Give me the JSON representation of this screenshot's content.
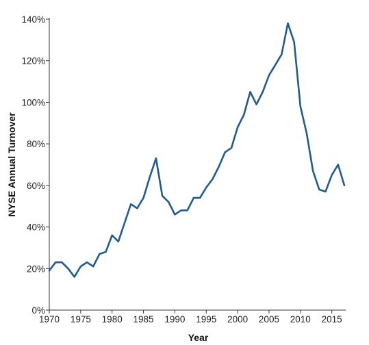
{
  "chart_data": {
    "type": "line",
    "title": "",
    "xlabel": "Year",
    "ylabel": "NYSE Annual Turnover",
    "xlim": [
      1970,
      2017
    ],
    "ylim": [
      0,
      140
    ],
    "x_ticks": [
      1970,
      1975,
      1980,
      1985,
      1990,
      1995,
      2000,
      2005,
      2010,
      2015
    ],
    "y_ticks": [
      0,
      20,
      40,
      60,
      80,
      100,
      120,
      140
    ],
    "y_tick_labels": [
      "0%",
      "20%",
      "40%",
      "60%",
      "80%",
      "100%",
      "120%",
      "140%"
    ],
    "grid": false,
    "legend": "none",
    "line_color": "#1f5a9a",
    "series": [
      {
        "x": [
          1970,
          1971,
          1972,
          1973,
          1974,
          1975,
          1976,
          1977,
          1978,
          1979,
          1980,
          1981,
          1982,
          1983,
          1984,
          1985,
          1986,
          1987,
          1988,
          1989,
          1990,
          1991,
          1992,
          1993,
          1994,
          1995,
          1996,
          1997,
          1998,
          1999,
          2000,
          2001,
          2002,
          2003,
          2004,
          2005,
          2006,
          2007,
          2008,
          2009,
          2010,
          2011,
          2012,
          2013,
          2014,
          2015,
          2016,
          2017
        ],
        "values": [
          19,
          23,
          23,
          20,
          16,
          21,
          23,
          21,
          27,
          28,
          36,
          33,
          42,
          51,
          49,
          54,
          64,
          73,
          55,
          52,
          46,
          48,
          48,
          54,
          54,
          59,
          63,
          69,
          76,
          78,
          88,
          94,
          105,
          99,
          105,
          113,
          118,
          123,
          138,
          129,
          98,
          85,
          67,
          58,
          57,
          65,
          70,
          60
        ]
      }
    ]
  }
}
